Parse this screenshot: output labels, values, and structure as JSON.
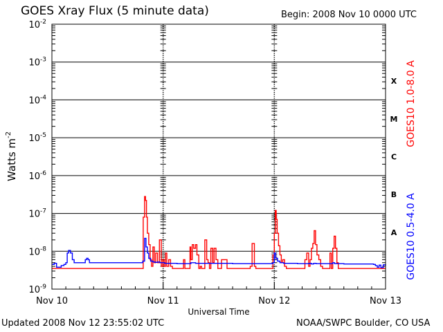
{
  "header": {
    "title": "GOES Xray Flux (5 minute data)",
    "begin": "Begin:  2008 Nov 10 0000 UTC"
  },
  "footer": {
    "updated": "Updated 2008 Nov 12 23:55:02 UTC",
    "credit": "NOAA/SWPC Boulder, CO USA"
  },
  "chart_data": {
    "type": "line",
    "ylabel": "Watts m",
    "ylabel_sup": "-2",
    "xlabel": "Universal Time",
    "yscale": "log",
    "ylim": [
      1e-09,
      0.01
    ],
    "xlim": [
      0,
      72
    ],
    "x_units": "hours since 2008 Nov 10 0000 UTC",
    "x_ticks": [
      {
        "x": 0,
        "label": "Nov 10"
      },
      {
        "x": 24,
        "label": "Nov 11"
      },
      {
        "x": 48,
        "label": "Nov 12"
      },
      {
        "x": 72,
        "label": "Nov 13"
      }
    ],
    "y_ticks": [
      {
        "exp": -2,
        "base": "10",
        "sup": "-2"
      },
      {
        "exp": -3,
        "base": "10",
        "sup": "-3"
      },
      {
        "exp": -4,
        "base": "10",
        "sup": "-4"
      },
      {
        "exp": -5,
        "base": "10",
        "sup": "-5"
      },
      {
        "exp": -6,
        "base": "10",
        "sup": "-6"
      },
      {
        "exp": -7,
        "base": "10",
        "sup": "-7"
      },
      {
        "exp": -8,
        "base": "10",
        "sup": "-8"
      },
      {
        "exp": -9,
        "base": "10",
        "sup": "-9"
      }
    ],
    "flare_classes": [
      {
        "label": "X",
        "exp": -3.5
      },
      {
        "label": "M",
        "exp": -4.5
      },
      {
        "label": "C",
        "exp": -5.5
      },
      {
        "label": "B",
        "exp": -6.5
      },
      {
        "label": "A",
        "exp": -7.5
      }
    ],
    "grid": true,
    "colors": {
      "long": "#ff0000",
      "short": "#0000ff",
      "axis": "#000000"
    },
    "series": [
      {
        "name": "GOES10 1.0-8.0 A",
        "color": "#ff0000",
        "x": [
          0,
          2,
          4,
          6,
          8,
          10,
          12,
          14,
          16,
          18,
          19.3,
          19.7,
          20,
          20.2,
          20.4,
          20.6,
          20.9,
          21.2,
          21.5,
          21.8,
          22.1,
          22.4,
          22.8,
          23.2,
          23.6,
          23.9,
          24.2,
          24.5,
          24.8,
          25.2,
          25.6,
          26,
          26.5,
          27,
          27.5,
          28,
          28.4,
          28.7,
          29.2,
          29.8,
          30,
          30.3,
          30.6,
          31,
          31.3,
          31.7,
          32,
          32.3,
          32.7,
          33,
          33.4,
          33.7,
          34,
          34.3,
          34.7,
          35,
          35.4,
          35.8,
          36.2,
          36.6,
          37,
          37.4,
          37.8,
          38.2,
          38.6,
          39,
          39.5,
          40,
          40.5,
          41,
          41.5,
          42,
          42.4,
          42.8,
          43.2,
          43.7,
          44,
          44.3,
          44.6,
          45,
          45.5,
          46,
          46.5,
          46.8,
          47.1,
          47.4,
          47.7,
          48,
          48.2,
          48.4,
          48.6,
          48.9,
          49.2,
          49.5,
          49.8,
          50.2,
          50.6,
          51,
          51.5,
          52,
          52.5,
          53,
          53.4,
          53.8,
          54.2,
          54.6,
          55,
          55.4,
          55.7,
          56,
          56.3,
          56.6,
          56.9,
          57.2,
          57.6,
          58,
          58.4,
          58.8,
          59.2,
          59.6,
          60,
          60.3,
          60.6,
          60.9,
          61.2,
          61.5,
          61.8,
          62.1,
          62.5,
          63,
          63.5,
          64,
          65,
          66,
          67,
          68,
          69,
          70,
          71,
          72
        ],
        "y": [
          3.5e-09,
          3.5e-09,
          3.5e-09,
          3.5e-09,
          3.5e-09,
          3.5e-09,
          3.5e-09,
          3.5e-09,
          3.5e-09,
          3.5e-09,
          3.5e-09,
          8e-08,
          2.8e-07,
          2.2e-07,
          8e-08,
          3e-08,
          1.5e-08,
          6e-09,
          4e-09,
          1.3e-08,
          5e-09,
          9e-09,
          5e-09,
          2e-08,
          4e-09,
          6e-09,
          4e-09,
          9e-09,
          4e-09,
          6e-09,
          4e-09,
          3.5e-09,
          3.5e-09,
          3.5e-09,
          3.5e-09,
          3.5e-09,
          6e-09,
          3.5e-09,
          3.5e-09,
          1.3e-08,
          6e-09,
          1.5e-08,
          1.2e-08,
          1.5e-08,
          8e-09,
          3.5e-09,
          4e-09,
          3.5e-09,
          3.5e-09,
          2e-08,
          6e-09,
          5e-09,
          3.5e-09,
          1.2e-08,
          5e-09,
          1.2e-08,
          6e-09,
          3.5e-09,
          3.5e-09,
          6e-09,
          6e-09,
          6e-09,
          3.5e-09,
          3.5e-09,
          3.5e-09,
          3.5e-09,
          3.5e-09,
          3.5e-09,
          3.5e-09,
          3.5e-09,
          3.5e-09,
          3.5e-09,
          3.5e-09,
          4e-09,
          1.6e-08,
          4e-09,
          3.5e-09,
          3.5e-09,
          3.5e-09,
          3.5e-09,
          3.5e-09,
          3.5e-09,
          3.5e-09,
          3.5e-09,
          3.5e-09,
          3.5e-09,
          8e-09,
          3e-08,
          1.2e-07,
          7e-08,
          3e-08,
          1.4e-08,
          8e-09,
          5e-09,
          6e-09,
          4e-09,
          3.5e-09,
          3.5e-09,
          3.5e-09,
          3.5e-09,
          3.5e-09,
          3.5e-09,
          3.5e-09,
          3.5e-09,
          3.5e-09,
          6e-09,
          9e-09,
          4e-09,
          6e-09,
          1.2e-08,
          1.6e-08,
          3.5e-08,
          1.5e-08,
          8e-09,
          6e-09,
          4e-09,
          3.5e-09,
          3.5e-09,
          3.5e-09,
          3.5e-09,
          9e-09,
          3.5e-09,
          1.2e-08,
          2.5e-08,
          1.2e-08,
          5e-09,
          3.5e-09,
          3.5e-09,
          3.5e-09,
          3.5e-09,
          3.5e-09,
          3.5e-09,
          3.5e-09,
          3.5e-09,
          3.5e-09,
          3.5e-09,
          3.5e-09,
          3.5e-09,
          3.5e-09,
          3.5e-09
        ]
      },
      {
        "name": "GOES10 0.5-4.0 A",
        "color": "#0000ff",
        "x": [
          0,
          0.5,
          1,
          1.5,
          2,
          2.6,
          3,
          3.3,
          3.6,
          4,
          4.4,
          4.8,
          5.5,
          6,
          6.8,
          7.2,
          7.5,
          7.8,
          8.1,
          8.5,
          9,
          10,
          11,
          12,
          13,
          14,
          15,
          16,
          17,
          18,
          19,
          19.6,
          20,
          20.3,
          20.6,
          20.9,
          21.3,
          21.8,
          22.3,
          22.8,
          23.3,
          23.8,
          24.3,
          25,
          26,
          27,
          28,
          29,
          30,
          31,
          32,
          33,
          34,
          35,
          36,
          37,
          38,
          39,
          40,
          41,
          42,
          43,
          44,
          45,
          46,
          47,
          47.7,
          48,
          48.3,
          48.7,
          49.2,
          50,
          51,
          52,
          53,
          54,
          55,
          55.5,
          56,
          56.5,
          57,
          58,
          59,
          60,
          60.6,
          61,
          62,
          63,
          64,
          65,
          66,
          67,
          68,
          69,
          69.4,
          69.8,
          70.2,
          70.6,
          71,
          71.5,
          72
        ],
        "y": [
          4.5e-09,
          4.8e-09,
          3.8e-09,
          3.8e-09,
          4.2e-09,
          4.5e-09,
          5e-09,
          9e-09,
          1.05e-08,
          9e-09,
          6e-09,
          5e-09,
          5e-09,
          5e-09,
          5e-09,
          6e-09,
          6.5e-09,
          6e-09,
          5e-09,
          5e-09,
          5e-09,
          5e-09,
          5e-09,
          5e-09,
          5e-09,
          5e-09,
          5e-09,
          5e-09,
          5e-09,
          5e-09,
          5e-09,
          5.5e-09,
          2.2e-08,
          1.3e-08,
          9e-09,
          6.5e-09,
          5.5e-09,
          5.2e-09,
          5.1e-09,
          5.2e-09,
          5e-09,
          5e-09,
          4.8e-09,
          4.8e-09,
          4.8e-09,
          4.7e-09,
          4.7e-09,
          4.7e-09,
          5e-09,
          4.8e-09,
          4.8e-09,
          4.8e-09,
          4.8e-09,
          4.8e-09,
          4.8e-09,
          4.8e-09,
          4.8e-09,
          4.7e-09,
          4.7e-09,
          4.7e-09,
          4.7e-09,
          4.7e-09,
          4.7e-09,
          4.7e-09,
          4.7e-09,
          4.7e-09,
          5e-09,
          9e-09,
          6.5e-09,
          5.5e-09,
          5e-09,
          4.8e-09,
          4.8e-09,
          4.8e-09,
          4.7e-09,
          4.7e-09,
          4.7e-09,
          4.8e-09,
          4.6e-09,
          4.8e-09,
          4.7e-09,
          4.7e-09,
          4.7e-09,
          4.7e-09,
          5e-09,
          4.7e-09,
          4.7e-09,
          4.6e-09,
          4.6e-09,
          4.6e-09,
          4.6e-09,
          4.6e-09,
          4.6e-09,
          4.6e-09,
          4.5e-09,
          4.2e-09,
          3.8e-09,
          4.3e-09,
          3.7e-09,
          4.4e-09,
          4.2e-09
        ]
      }
    ]
  }
}
